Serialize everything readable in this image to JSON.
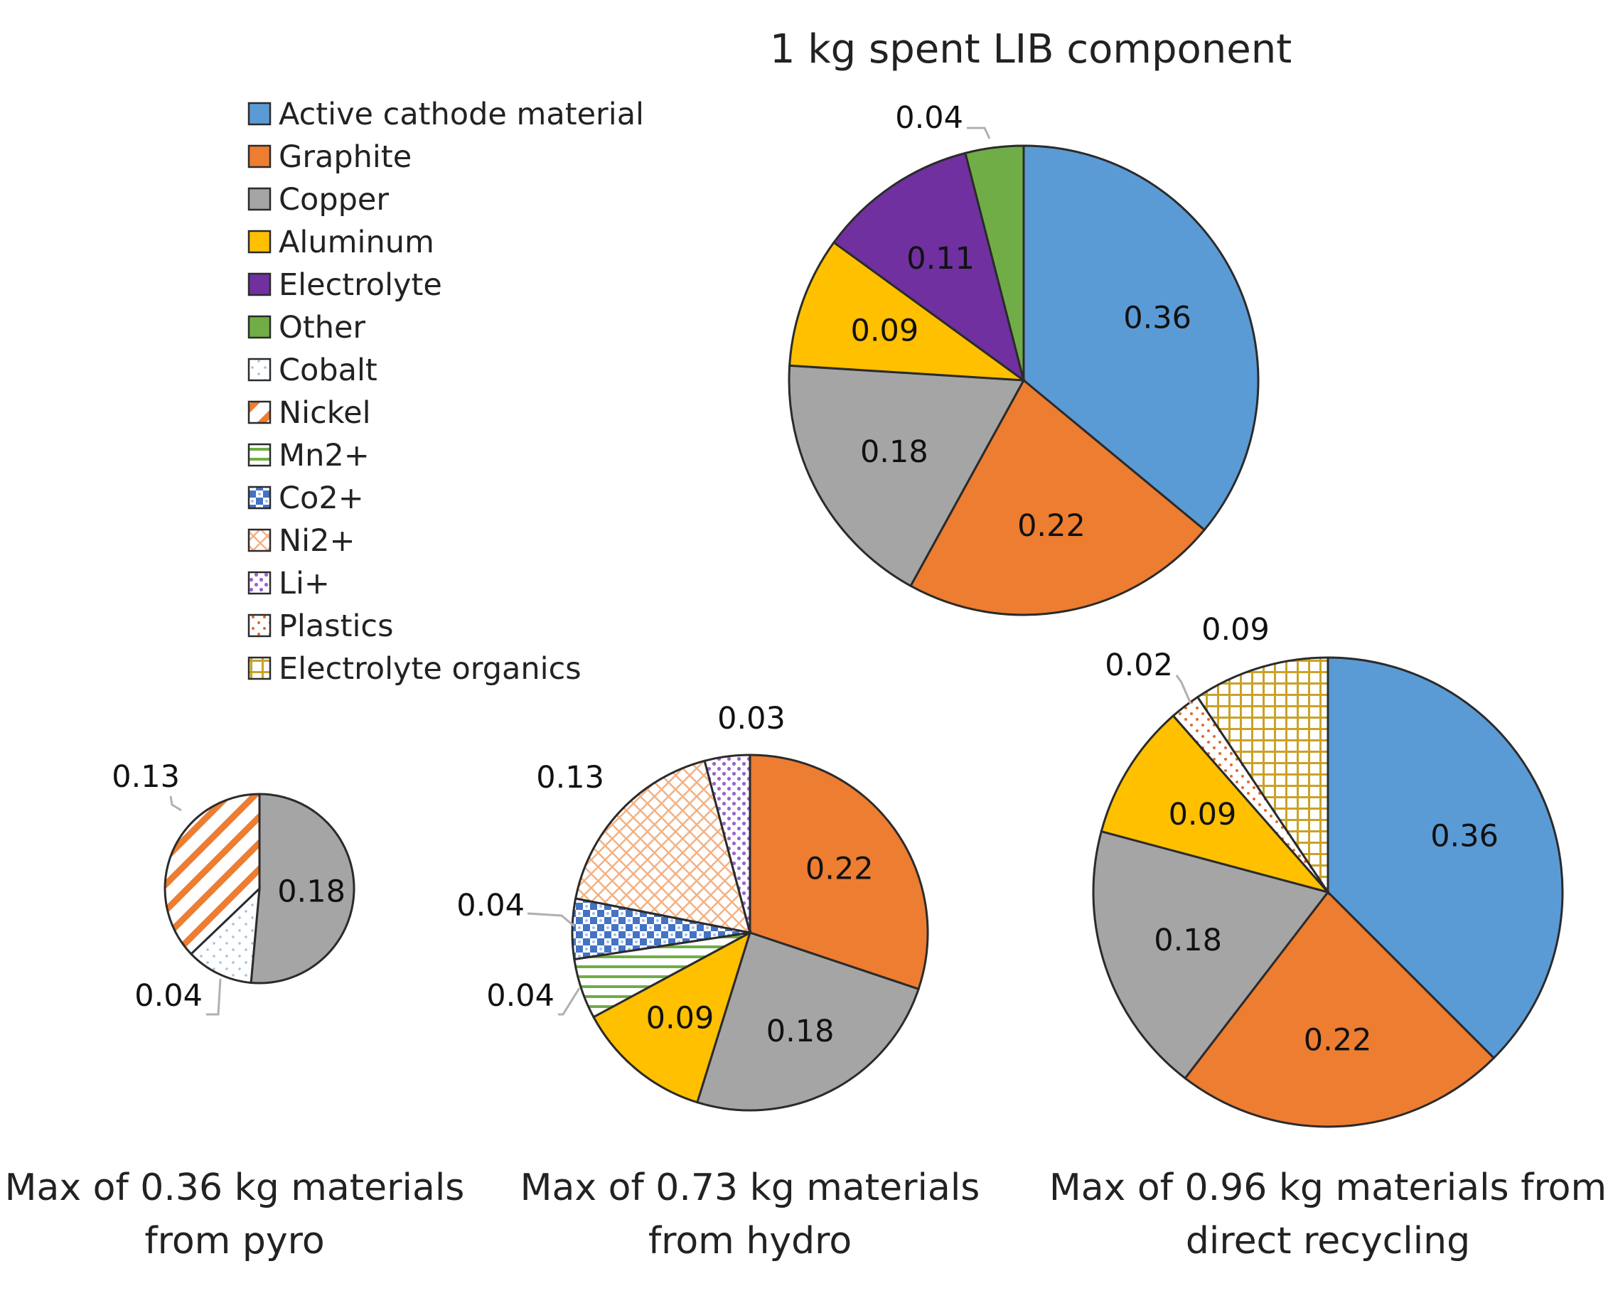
{
  "chart_data": {
    "type": "pie",
    "title": "1 kg spent LIB component",
    "legend": {
      "placement": "top-left",
      "entries": [
        {
          "name": "Active cathode material",
          "color": "#5b9bd5",
          "pattern": "solid"
        },
        {
          "name": "Graphite",
          "color": "#ed7d31",
          "pattern": "solid"
        },
        {
          "name": "Copper",
          "color": "#a5a5a5",
          "pattern": "solid"
        },
        {
          "name": "Aluminum",
          "color": "#ffc000",
          "pattern": "solid"
        },
        {
          "name": "Electrolyte",
          "color": "#7030a0",
          "pattern": "solid"
        },
        {
          "name": "Other",
          "color": "#70ad47",
          "pattern": "solid"
        },
        {
          "name": "Cobalt",
          "color": "#5b9bd5",
          "pattern": "dots-light"
        },
        {
          "name": "Nickel",
          "color": "#ed7d31",
          "pattern": "diagonal-wide"
        },
        {
          "name": "Mn2+",
          "color": "#70ad47",
          "pattern": "horizontal"
        },
        {
          "name": "Co2+",
          "color": "#4472c4",
          "pattern": "checker"
        },
        {
          "name": "Ni2+",
          "color": "#ed7d31",
          "pattern": "diagonal-fine"
        },
        {
          "name": "Li+",
          "color": "#7030a0",
          "pattern": "dots"
        },
        {
          "name": "Plastics",
          "color": "#c55a11",
          "pattern": "diag-dots"
        },
        {
          "name": "Electrolyte organics",
          "color": "#bf9000",
          "pattern": "grid"
        }
      ]
    },
    "pies": [
      {
        "id": "spent",
        "caption_lines": [],
        "total_kg": 1.0,
        "slices": [
          {
            "category": "Active cathode material",
            "value": 0.36
          },
          {
            "category": "Graphite",
            "value": 0.22
          },
          {
            "category": "Copper",
            "value": 0.18
          },
          {
            "category": "Aluminum",
            "value": 0.09
          },
          {
            "category": "Electrolyte",
            "value": 0.11
          },
          {
            "category": "Other",
            "value": 0.04
          }
        ],
        "labels": [
          "0.36",
          "0.22",
          "0.18",
          "0.09",
          "0.11",
          "0.04"
        ]
      },
      {
        "id": "pyro",
        "caption_lines": [
          "Max of 0.36 kg materials",
          "from pyro"
        ],
        "total_kg": 0.36,
        "slices": [
          {
            "category": "Copper",
            "value": 0.18
          },
          {
            "category": "Cobalt",
            "value": 0.04
          },
          {
            "category": "Nickel",
            "value": 0.13
          }
        ],
        "labels": [
          "0.18",
          "0.04",
          "0.13"
        ]
      },
      {
        "id": "hydro",
        "caption_lines": [
          "Max of 0.73 kg materials",
          "from hydro"
        ],
        "total_kg": 0.73,
        "slices": [
          {
            "category": "Graphite",
            "value": 0.22
          },
          {
            "category": "Copper",
            "value": 0.18
          },
          {
            "category": "Aluminum",
            "value": 0.09
          },
          {
            "category": "Mn2+",
            "value": 0.04
          },
          {
            "category": "Co2+",
            "value": 0.04
          },
          {
            "category": "Ni2+",
            "value": 0.13
          },
          {
            "category": "Li+",
            "value": 0.03
          }
        ],
        "labels": [
          "0.22",
          "0.18",
          "0.09",
          "0.04",
          "0.04",
          "0.13",
          "0.03"
        ]
      },
      {
        "id": "direct",
        "caption_lines": [
          "Max of 0.96 kg materials from",
          "direct recycling"
        ],
        "total_kg": 0.96,
        "slices": [
          {
            "category": "Active cathode material",
            "value": 0.36
          },
          {
            "category": "Graphite",
            "value": 0.22
          },
          {
            "category": "Copper",
            "value": 0.18
          },
          {
            "category": "Aluminum",
            "value": 0.09
          },
          {
            "category": "Plastics",
            "value": 0.02
          },
          {
            "category": "Electrolyte organics",
            "value": 0.09
          }
        ],
        "labels": [
          "0.36",
          "0.22",
          "0.18",
          "0.09",
          "0.02",
          "0.09"
        ]
      }
    ]
  }
}
